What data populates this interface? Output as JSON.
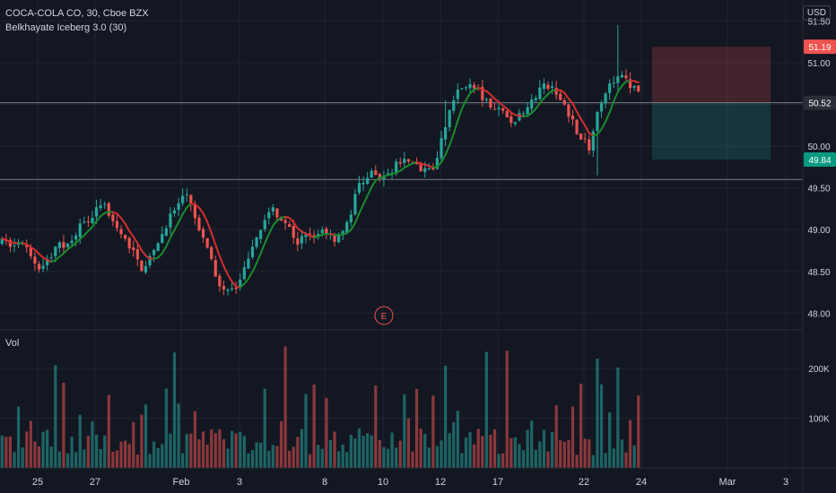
{
  "header": {
    "symbol_line": "COCA-COLA CO, 30, Cboe BZX",
    "indicator_line": "Belkhayate Iceberg 3.0 (30)",
    "currency": "USD",
    "volume_label": "Vol"
  },
  "colors": {
    "background": "#131722",
    "up": "#26a69a",
    "down": "#ef5350",
    "ma_up": "#1b8a2e",
    "ma_down": "#d32f2f",
    "grid": "#1f2431",
    "text": "#d1d4dc",
    "price_line": "#9598a1"
  },
  "chart_data": {
    "type": "candlestick",
    "price_axis": {
      "ticks": [
        51.5,
        51.0,
        50.5,
        50.0,
        49.5,
        49.0,
        48.5,
        48.0
      ],
      "range": [
        47.8,
        51.75
      ]
    },
    "volume_axis": {
      "ticks": [
        "200K",
        "100K"
      ],
      "values": [
        200000,
        100000
      ],
      "max": 260000
    },
    "time_axis": {
      "labels": [
        "25",
        "27",
        "Feb",
        "3",
        "8",
        "10",
        "12",
        "17",
        "22",
        "24",
        "Mar",
        "3"
      ]
    },
    "price_labels": [
      {
        "text": "51.19",
        "value": 51.19,
        "color": "#ef5350"
      },
      {
        "text": "50.52",
        "value": 50.52,
        "color": "#2a2e39"
      },
      {
        "text": "49.84",
        "value": 49.84,
        "color": "#089981"
      }
    ],
    "position_box": {
      "entry": 50.52,
      "stop": 51.19,
      "target": 49.84
    },
    "horizontal_lines": [
      50.52,
      49.6
    ],
    "earnings_marker": "E",
    "path_anchors": [
      [
        0,
        48.85
      ],
      [
        6,
        48.8
      ],
      [
        10,
        48.55
      ],
      [
        14,
        48.75
      ],
      [
        18,
        48.9
      ],
      [
        22,
        49.15
      ],
      [
        26,
        49.3
      ],
      [
        28,
        49.05
      ],
      [
        32,
        48.8
      ],
      [
        35,
        48.55
      ],
      [
        38,
        48.7
      ],
      [
        42,
        49.2
      ],
      [
        46,
        49.4
      ],
      [
        49,
        49.0
      ],
      [
        52,
        48.6
      ],
      [
        55,
        48.25
      ],
      [
        58,
        48.3
      ],
      [
        61,
        48.6
      ],
      [
        64,
        49.05
      ],
      [
        67,
        49.25
      ],
      [
        70,
        49.1
      ],
      [
        73,
        48.85
      ],
      [
        76,
        48.95
      ],
      [
        79,
        49.0
      ],
      [
        82,
        48.9
      ],
      [
        85,
        49.05
      ],
      [
        88,
        49.55
      ],
      [
        91,
        49.65
      ],
      [
        94,
        49.6
      ],
      [
        97,
        49.8
      ],
      [
        100,
        49.8
      ],
      [
        103,
        49.75
      ],
      [
        106,
        49.7
      ],
      [
        108,
        50.1
      ],
      [
        111,
        50.6
      ],
      [
        114,
        50.75
      ],
      [
        117,
        50.65
      ],
      [
        120,
        50.45
      ],
      [
        123,
        50.4
      ],
      [
        126,
        50.3
      ],
      [
        129,
        50.45
      ],
      [
        132,
        50.7
      ],
      [
        135,
        50.7
      ],
      [
        138,
        50.5
      ],
      [
        141,
        50.2
      ],
      [
        144,
        49.95
      ],
      [
        146,
        50.35
      ],
      [
        149,
        50.8
      ],
      [
        152,
        50.85
      ],
      [
        154,
        50.75
      ],
      [
        156,
        50.6
      ]
    ],
    "total_bars": 156
  }
}
